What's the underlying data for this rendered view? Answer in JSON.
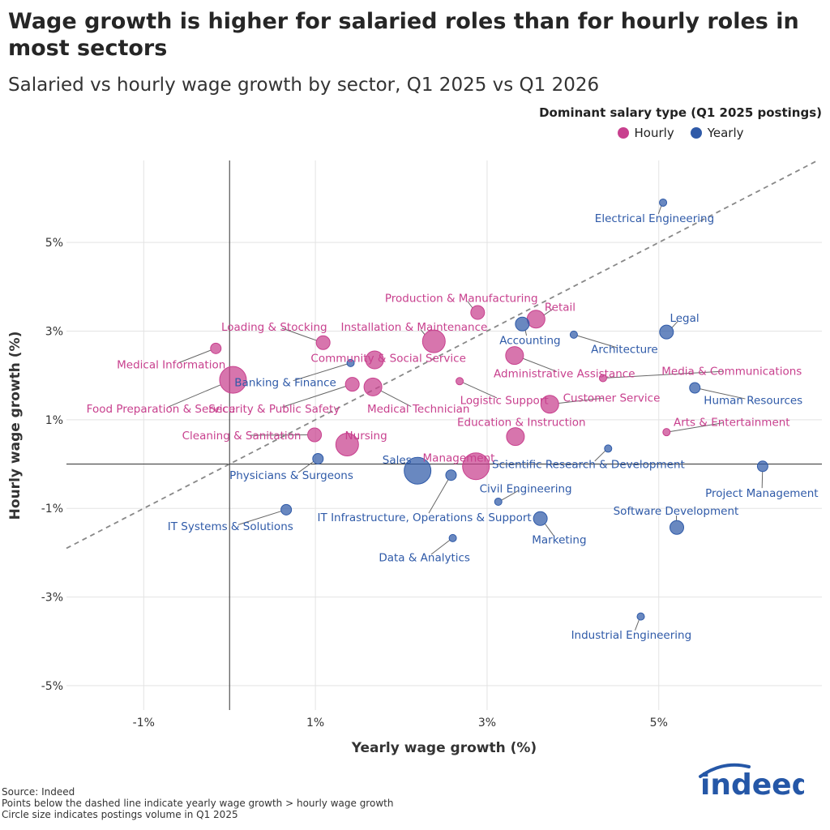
{
  "title": "Wage growth is higher for salaried roles than for hourly roles in most sectors",
  "subtitle": "Salaried vs hourly wage growth by sector, Q1 2025 vs Q1 2026",
  "legend": {
    "title": "Dominant salary type (Q1 2025 postings)",
    "items": [
      {
        "label": "Hourly",
        "color": "#c8408e"
      },
      {
        "label": "Yearly",
        "color": "#2f5aa8"
      }
    ]
  },
  "footer": {
    "source": "Source: Indeed",
    "note1": "Points below the dashed line indicate yearly wage growth > hourly wage growth",
    "note2": "Circle size indicates postings volume in Q1 2025"
  },
  "logo_text": "indeed",
  "chart_data": {
    "type": "scatter",
    "xlabel": "Yearly wage growth (%)",
    "ylabel": "Hourly wage growth (%)",
    "xlim": [
      -1.9,
      6.9
    ],
    "ylim": [
      -5.55,
      6.85
    ],
    "xticks": [
      -1,
      1,
      3,
      5
    ],
    "xtick_labels": [
      "-1%",
      "1%",
      "3%",
      "5%"
    ],
    "yticks": [
      -5,
      -3,
      -1,
      1,
      3,
      5
    ],
    "ytick_labels": [
      "-5%",
      "-3%",
      "-1%",
      "1%",
      "3%",
      "5%"
    ],
    "grid": true,
    "reference_line": "y = x",
    "colors": {
      "Hourly": "#c8408e",
      "Yearly": "#2f5aa8"
    },
    "points": [
      {
        "label": "Electrical Engineering",
        "x": 5.05,
        "y": 5.9,
        "type": "Yearly",
        "size": 1,
        "lx": 4.95,
        "ly": 5.55,
        "anchor": "middle"
      },
      {
        "label": "Production & Manufacturing",
        "x": 2.89,
        "y": 3.42,
        "type": "Hourly",
        "size": 3,
        "lx": 2.7,
        "ly": 3.75,
        "anchor": "middle"
      },
      {
        "label": "Retail",
        "x": 3.57,
        "y": 3.27,
        "type": "Hourly",
        "size": 4,
        "lx": 3.85,
        "ly": 3.55,
        "anchor": "middle"
      },
      {
        "label": "Installation & Maintenance",
        "x": 2.38,
        "y": 2.77,
        "type": "Hourly",
        "size": 5,
        "lx": 2.15,
        "ly": 3.1,
        "anchor": "middle"
      },
      {
        "label": "Loading & Stocking",
        "x": 1.09,
        "y": 2.74,
        "type": "Hourly",
        "size": 3,
        "lx": 0.52,
        "ly": 3.1,
        "anchor": "middle"
      },
      {
        "label": "Accounting",
        "x": 3.41,
        "y": 3.16,
        "type": "Yearly",
        "size": 3,
        "lx": 3.5,
        "ly": 2.8,
        "anchor": "middle"
      },
      {
        "label": "Architecture",
        "x": 4.01,
        "y": 2.92,
        "type": "Yearly",
        "size": 1,
        "lx": 4.6,
        "ly": 2.6,
        "anchor": "middle"
      },
      {
        "label": "Legal",
        "x": 5.09,
        "y": 2.98,
        "type": "Yearly",
        "size": 3,
        "lx": 5.3,
        "ly": 3.3,
        "anchor": "middle"
      },
      {
        "label": "Medical Information",
        "x": -0.16,
        "y": 2.61,
        "type": "Hourly",
        "size": 2,
        "lx": -0.68,
        "ly": 2.25,
        "anchor": "middle"
      },
      {
        "label": "Community & Social Service",
        "x": 1.69,
        "y": 2.35,
        "type": "Hourly",
        "size": 4,
        "lx": 1.85,
        "ly": 2.4,
        "anchor": "middle"
      },
      {
        "label": "Administrative Assistance",
        "x": 3.32,
        "y": 2.45,
        "type": "Hourly",
        "size": 4,
        "lx": 3.9,
        "ly": 2.05,
        "anchor": "middle"
      },
      {
        "label": "Banking & Finance",
        "x": 1.41,
        "y": 2.28,
        "type": "Yearly",
        "size": 1,
        "lx": 0.65,
        "ly": 1.85,
        "anchor": "middle"
      },
      {
        "label": "Media & Communications",
        "x": 4.35,
        "y": 1.94,
        "type": "Hourly",
        "size": 1,
        "lx": 5.85,
        "ly": 2.1,
        "anchor": "middle"
      },
      {
        "label": "Food Preparation & Service",
        "x": 0.04,
        "y": 1.9,
        "type": "Hourly",
        "size": 6,
        "lx": -0.8,
        "ly": 1.25,
        "anchor": "middle"
      },
      {
        "label": "Logistic Support",
        "x": 2.68,
        "y": 1.87,
        "type": "Hourly",
        "size": 1,
        "lx": 3.2,
        "ly": 1.45,
        "anchor": "middle"
      },
      {
        "label": "Security & Public Safety",
        "x": 1.43,
        "y": 1.8,
        "type": "Hourly",
        "size": 3,
        "lx": 0.52,
        "ly": 1.25,
        "anchor": "middle"
      },
      {
        "label": "Medical Technician",
        "x": 1.67,
        "y": 1.74,
        "type": "Hourly",
        "size": 4,
        "lx": 2.2,
        "ly": 1.25,
        "anchor": "middle"
      },
      {
        "label": "Human Resources",
        "x": 5.42,
        "y": 1.72,
        "type": "Yearly",
        "size": 2,
        "lx": 6.1,
        "ly": 1.45,
        "anchor": "middle"
      },
      {
        "label": "Customer Service",
        "x": 3.73,
        "y": 1.35,
        "type": "Hourly",
        "size": 4,
        "lx": 4.45,
        "ly": 1.5,
        "anchor": "middle"
      },
      {
        "label": "Arts & Entertainment",
        "x": 5.09,
        "y": 0.72,
        "type": "Hourly",
        "size": 1,
        "lx": 5.85,
        "ly": 0.95,
        "anchor": "middle"
      },
      {
        "label": "Education & Instruction",
        "x": 3.33,
        "y": 0.62,
        "type": "Hourly",
        "size": 4,
        "lx": 3.4,
        "ly": 0.95,
        "anchor": "middle"
      },
      {
        "label": "Cleaning & Sanitation",
        "x": 0.99,
        "y": 0.66,
        "type": "Hourly",
        "size": 3,
        "lx": 0.14,
        "ly": 0.65,
        "anchor": "middle"
      },
      {
        "label": "Nursing",
        "x": 1.37,
        "y": 0.44,
        "type": "Hourly",
        "size": 5,
        "lx": 1.59,
        "ly": 0.65,
        "anchor": "middle"
      },
      {
        "label": "Scientific Research & Development",
        "x": 4.41,
        "y": 0.35,
        "type": "Yearly",
        "size": 1,
        "lx": 4.18,
        "ly": 0.0,
        "anchor": "middle"
      },
      {
        "label": "Physicians & Surgeons",
        "x": 1.03,
        "y": 0.12,
        "type": "Yearly",
        "size": 2,
        "lx": 0.72,
        "ly": -0.25,
        "anchor": "middle"
      },
      {
        "label": "Sales",
        "x": 2.19,
        "y": -0.15,
        "type": "Yearly",
        "size": 6,
        "lx": 1.95,
        "ly": 0.1,
        "anchor": "middle"
      },
      {
        "label": "Management",
        "x": 2.87,
        "y": -0.05,
        "type": "Hourly",
        "size": 6,
        "lx": 2.67,
        "ly": 0.15,
        "anchor": "middle"
      },
      {
        "label": "Project Management",
        "x": 6.21,
        "y": -0.05,
        "type": "Yearly",
        "size": 2,
        "lx": 6.2,
        "ly": -0.65,
        "anchor": "middle"
      },
      {
        "label": "IT Infrastructure, Operations & Support",
        "x": 2.58,
        "y": -0.25,
        "type": "Yearly",
        "size": 2,
        "lx": 2.27,
        "ly": -1.2,
        "anchor": "middle"
      },
      {
        "label": "Civil Engineering",
        "x": 3.13,
        "y": -0.85,
        "type": "Yearly",
        "size": 1,
        "lx": 3.45,
        "ly": -0.55,
        "anchor": "middle"
      },
      {
        "label": "IT Systems & Solutions",
        "x": 0.66,
        "y": -1.03,
        "type": "Yearly",
        "size": 2,
        "lx": 0.01,
        "ly": -1.4,
        "anchor": "middle"
      },
      {
        "label": "Marketing",
        "x": 3.62,
        "y": -1.23,
        "type": "Yearly",
        "size": 3,
        "lx": 3.84,
        "ly": -1.7,
        "anchor": "middle"
      },
      {
        "label": "Software Development",
        "x": 5.21,
        "y": -1.43,
        "type": "Yearly",
        "size": 3,
        "lx": 5.2,
        "ly": -1.05,
        "anchor": "middle"
      },
      {
        "label": "Data & Analytics",
        "x": 2.6,
        "y": -1.67,
        "type": "Yearly",
        "size": 1,
        "lx": 2.27,
        "ly": -2.1,
        "anchor": "middle"
      },
      {
        "label": "Industrial Engineering",
        "x": 4.79,
        "y": -3.44,
        "type": "Yearly",
        "size": 1,
        "lx": 4.68,
        "ly": -3.85,
        "anchor": "middle"
      }
    ]
  }
}
